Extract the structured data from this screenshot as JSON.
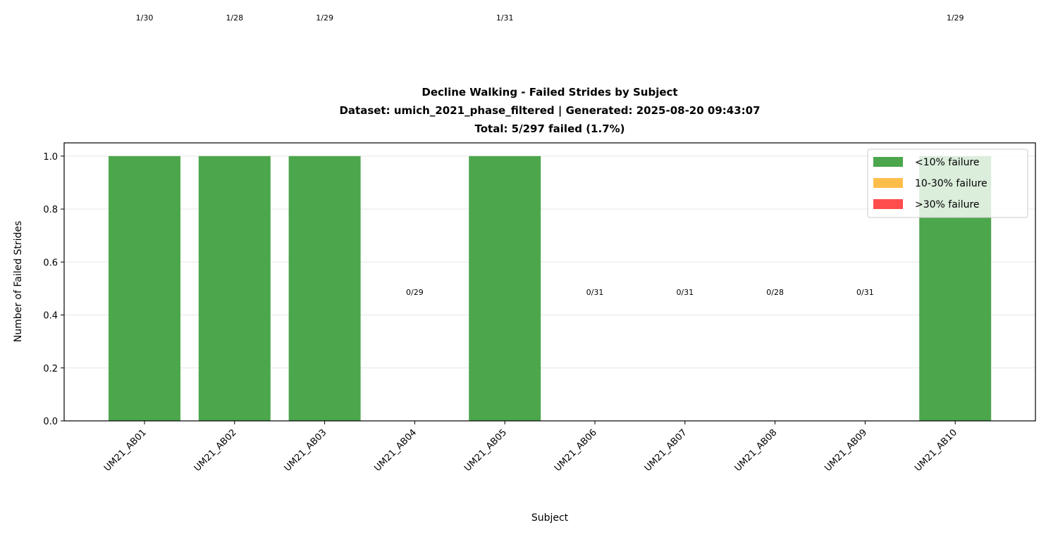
{
  "chart_data": {
    "type": "bar",
    "title_lines": [
      "Decline Walking - Failed Strides by Subject",
      "Dataset: umich_2021_phase_filtered | Generated: 2025-08-20 09:43:07",
      "Total: 5/297 failed (1.7%)"
    ],
    "xlabel": "Subject",
    "ylabel": "Number of Failed Strides",
    "ylim": [
      0,
      1.05
    ],
    "yticks": [
      "0.0",
      "0.2",
      "0.4",
      "0.6",
      "0.8",
      "1.0"
    ],
    "grid": "horizontal",
    "legend_position": "top-right",
    "legend": [
      {
        "label": "<10% failure",
        "color": "#4ca64c"
      },
      {
        "label": "10-30% failure",
        "color": "#ffbe4c"
      },
      {
        "label": ">30% failure",
        "color": "#ff4c4c"
      }
    ],
    "categories": [
      "UM21_AB01",
      "UM21_AB02",
      "UM21_AB03",
      "UM21_AB04",
      "UM21_AB05",
      "UM21_AB06",
      "UM21_AB07",
      "UM21_AB08",
      "UM21_AB09",
      "UM21_AB10"
    ],
    "values": [
      1,
      1,
      1,
      0,
      1,
      0,
      0,
      0,
      0,
      1
    ],
    "bar_labels": [
      "1/30",
      "1/28",
      "1/29",
      "0/29",
      "1/31",
      "0/31",
      "0/31",
      "0/28",
      "0/31",
      "1/29"
    ],
    "bar_color": "#4ca64c"
  }
}
